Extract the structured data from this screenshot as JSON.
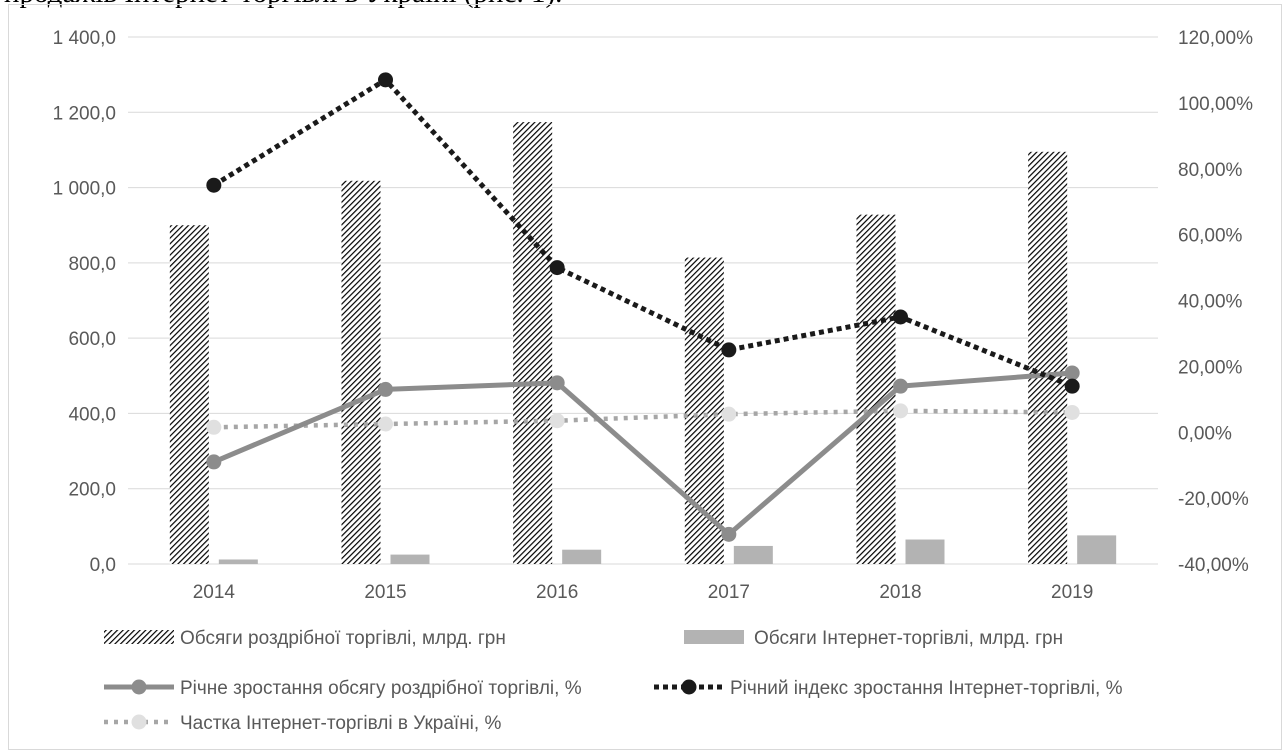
{
  "caption": "продажів Інтернет-торгівлі в Україні (рис. 1).",
  "chart_data": {
    "type": "bar",
    "categories": [
      "2014",
      "2015",
      "2016",
      "2017",
      "2018",
      "2019"
    ],
    "y_left": {
      "ylim": [
        0,
        1400
      ],
      "ticks": [
        "0,0",
        "200,0",
        "400,0",
        "600,0",
        "800,0",
        "1 000,0",
        "1 200,0",
        "1 400,0"
      ]
    },
    "y_right": {
      "ylim": [
        -0.4,
        1.2
      ],
      "ticks": [
        "-40,00%",
        "-20,00%",
        "0,00%",
        "20,00%",
        "40,00%",
        "60,00%",
        "80,00%",
        "100,00%",
        "120,00%"
      ]
    },
    "grid": true,
    "legend_position": "bottom",
    "series": [
      {
        "name": "Обсяги роздрібної торгівлі, млрд. грн",
        "kind": "bar",
        "axis": "left",
        "style": "hatch",
        "values": [
          900,
          1018,
          1174,
          814,
          928,
          1095
        ]
      },
      {
        "name": "Обсяги Інтернет-торгівлі, млрд. грн",
        "kind": "bar",
        "axis": "left",
        "style": "gray",
        "values": [
          12,
          25,
          38,
          48,
          65,
          76
        ]
      },
      {
        "name": "Річне зростання обсягу роздрібної торгівлі, %",
        "kind": "line",
        "axis": "right",
        "style": "solid-gray",
        "values": [
          -0.09,
          0.13,
          0.15,
          -0.31,
          0.14,
          0.18
        ]
      },
      {
        "name": "Річний індекс зростання Інтернет-торгівлі, %",
        "kind": "line",
        "axis": "right",
        "style": "dotted-black",
        "values": [
          0.75,
          1.07,
          0.5,
          0.25,
          0.35,
          0.14
        ]
      },
      {
        "name": "Частка Інтернет-торгівлі в Україні, %",
        "kind": "line",
        "axis": "right",
        "style": "dotted-gray",
        "values": [
          0.015,
          0.025,
          0.035,
          0.055,
          0.065,
          0.06
        ]
      }
    ],
    "colors": {
      "hatch": "#000000",
      "gray_bar": "#b3b3b3",
      "solid_line": "#8c8c8c",
      "dotted_black": "#1a1a1a",
      "dotted_gray": "#a6a6a6",
      "grid": "#d9d9d9",
      "tick_text": "#595959"
    }
  }
}
